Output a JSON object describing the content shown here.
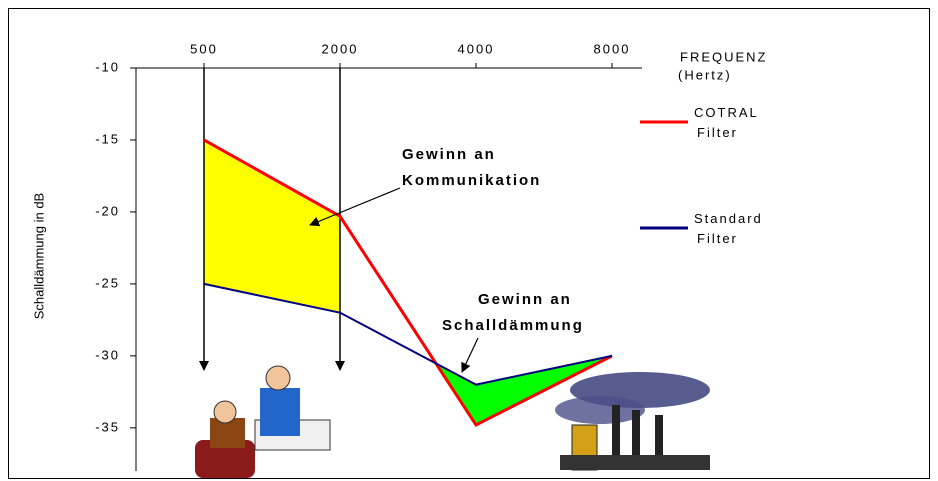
{
  "chart_data": {
    "type": "line",
    "y_label": "Schalldämmung in dB",
    "x_label": "FREQUENZ",
    "x_unit_label": "(Hertz)",
    "categories": [
      "500",
      "2000",
      "4000",
      "8000"
    ],
    "series": [
      {
        "name": "COTRAL Filter",
        "color": "#ff0000",
        "values": [
          -15,
          -20.3,
          -34.8,
          -30
        ]
      },
      {
        "name": "Standard Filter",
        "color": "#000080",
        "values": [
          -25,
          -27,
          -32,
          -30
        ]
      }
    ],
    "ylim": [
      -38,
      -10
    ],
    "yticks": [
      -10,
      -15,
      -20,
      -25,
      -30,
      -35
    ],
    "annotations": [
      {
        "lines": [
          "Gewinn an",
          "Kommunikation"
        ],
        "color": "#ffff00"
      },
      {
        "lines": [
          "Gewinn an",
          "Schalldämmung"
        ],
        "color": "#00ff00"
      }
    ]
  }
}
